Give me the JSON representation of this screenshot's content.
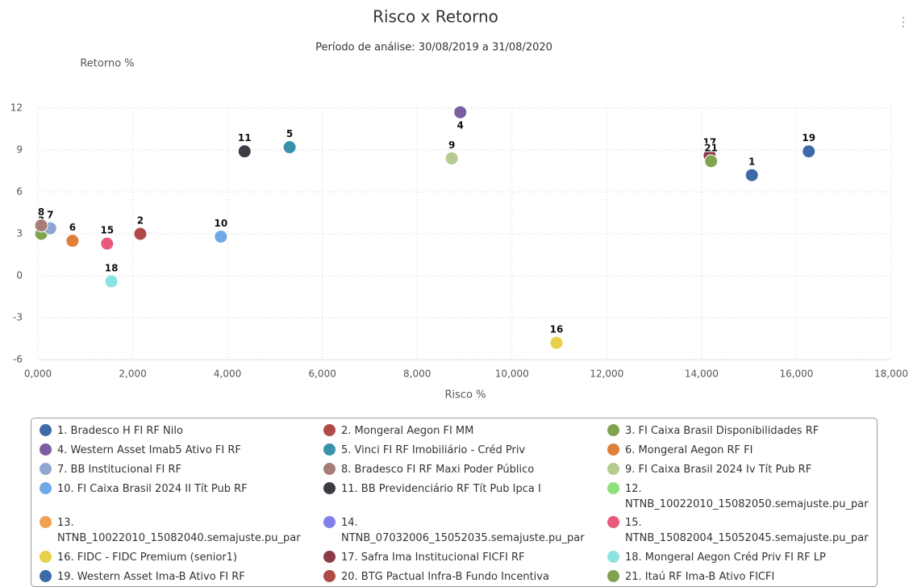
{
  "chart_data": {
    "type": "scatter",
    "title": "Risco x Retorno",
    "subtitle": "Período de análise: 30/08/2019 a 31/08/2020",
    "ylabel": "Retorno %",
    "xlabel": "Risco %",
    "xlim": [
      0,
      18000
    ],
    "xticks": [
      {
        "value": 0,
        "label": "0,000"
      },
      {
        "value": 2000,
        "label": "2,000"
      },
      {
        "value": 4000,
        "label": "4,000"
      },
      {
        "value": 6000,
        "label": "6,000"
      },
      {
        "value": 8000,
        "label": "8,000"
      },
      {
        "value": 10000,
        "label": "10,000"
      },
      {
        "value": 12000,
        "label": "12,000"
      },
      {
        "value": 14000,
        "label": "14,000"
      },
      {
        "value": 16000,
        "label": "16,000"
      },
      {
        "value": 18000,
        "label": "18,000"
      }
    ],
    "ylim": [
      -6,
      12
    ],
    "yticks": [
      12,
      9,
      6,
      3,
      0,
      -3,
      -6
    ],
    "grid": true,
    "series": [
      {
        "name": "1. Bradesco H FI RF Nilo",
        "color": "#3e6aa8",
        "x": [
          15060
        ],
        "values": [
          7.2
        ],
        "point_labels": [
          "1"
        ]
      },
      {
        "name": "2. Mongeral Aegon FI MM",
        "color": "#b04a45",
        "x": [
          2160
        ],
        "values": [
          3.0
        ],
        "point_labels": [
          "2"
        ]
      },
      {
        "name": "3. FI Caixa Brasil Disponibilidades RF",
        "color": "#7fa34e",
        "x": [
          70
        ],
        "values": [
          3.0
        ],
        "point_labels": [
          "3"
        ]
      },
      {
        "name": "4. Western Asset Imab5 Ativo FI RF",
        "color": "#7b5ea0",
        "x": [
          8910
        ],
        "values": [
          11.7
        ],
        "point_labels": [
          "4"
        ]
      },
      {
        "name": "5. Vinci FI RF Imobiliário - Créd Priv",
        "color": "#3a92a8",
        "x": [
          5310
        ],
        "values": [
          9.2
        ],
        "point_labels": [
          "5"
        ]
      },
      {
        "name": "6. Mongeral Aegon RF FI",
        "color": "#e07f3a",
        "x": [
          730
        ],
        "values": [
          2.5
        ],
        "point_labels": [
          "6"
        ]
      },
      {
        "name": "7. BB Institucional FI RF",
        "color": "#8ea6cf",
        "x": [
          260
        ],
        "values": [
          3.4
        ],
        "point_labels": [
          "7"
        ]
      },
      {
        "name": "8. Bradesco FI RF Maxi Poder Público",
        "color": "#a77d78",
        "x": [
          70
        ],
        "values": [
          3.6
        ],
        "point_labels": [
          "8"
        ]
      },
      {
        "name": "9. FI Caixa Brasil 2024 Iv Tít Pub RF",
        "color": "#b5cc8e",
        "x": [
          8730
        ],
        "values": [
          8.4
        ],
        "point_labels": [
          "9"
        ]
      },
      {
        "name": "10. FI Caixa Brasil 2024 II Tít Pub RF",
        "color": "#6fa8e6",
        "x": [
          3860
        ],
        "values": [
          2.8
        ],
        "point_labels": [
          "10"
        ]
      },
      {
        "name": "11. BB Previdenciário RF Tít Pub Ipca I",
        "color": "#3a3d44",
        "x": [
          4360
        ],
        "values": [
          8.9
        ],
        "point_labels": [
          "11"
        ]
      },
      {
        "name": "12. NTNB_10022010_15082050.semajuste.pu_par",
        "color": "#8fe07a",
        "x": [
          null
        ],
        "values": [
          null
        ]
      },
      {
        "name": "13. NTNB_10022010_15082040.semajuste.pu_par",
        "color": "#f0a050",
        "x": [
          null
        ],
        "values": [
          null
        ]
      },
      {
        "name": "14. NTNB_07032006_15052035.semajuste.pu_par",
        "color": "#8080e8",
        "x": [
          null
        ],
        "values": [
          null
        ]
      },
      {
        "name": "15. NTNB_15082004_15052045.semajuste.pu_par",
        "color": "#e85a7a",
        "x": [
          1460
        ],
        "values": [
          2.3
        ],
        "point_labels": [
          "15"
        ]
      },
      {
        "name": "16. FIDC - FIDC Premium (senior1)",
        "color": "#e8d04a",
        "x": [
          10940
        ],
        "values": [
          -4.8
        ],
        "point_labels": [
          "16"
        ]
      },
      {
        "name": "17. Safra Ima Institucional FICFI RF",
        "color": "#8b3a46",
        "x": [
          14170
        ],
        "values": [
          8.6
        ],
        "point_labels": [
          "17"
        ]
      },
      {
        "name": "18. Mongeral Aegon Créd Priv FI RF LP",
        "color": "#8ae3e0",
        "x": [
          1550
        ],
        "values": [
          -0.4
        ],
        "point_labels": [
          "18"
        ]
      },
      {
        "name": "19. Western Asset Ima-B Ativo FI RF",
        "color": "#3e6aa8",
        "x": [
          16260
        ],
        "values": [
          8.9
        ],
        "point_labels": [
          "19"
        ]
      },
      {
        "name": "20. BTG Pactual Infra-B Fundo Incentiva",
        "color": "#b04a45",
        "x": [
          null
        ],
        "values": [
          null
        ]
      },
      {
        "name": "21. Itaú RF Ima-B Ativo FICFI",
        "color": "#7fa34e",
        "x": [
          14200
        ],
        "values": [
          8.2
        ],
        "point_labels": [
          "21"
        ]
      }
    ]
  }
}
